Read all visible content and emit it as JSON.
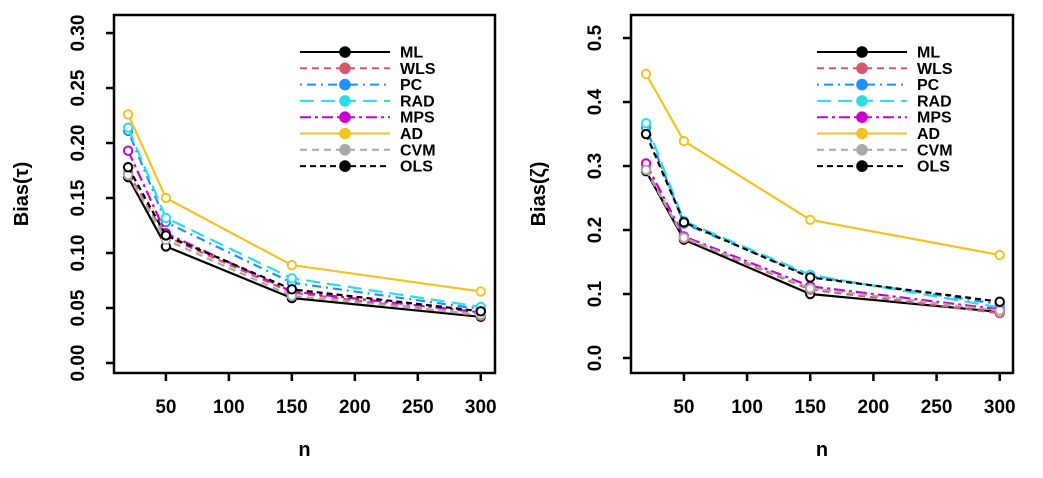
{
  "figure": {
    "background": "#ffffff",
    "text_color": "#000000"
  },
  "chart_data": [
    {
      "type": "line",
      "title": "",
      "xlabel": "n",
      "ylabel": "Bias(τ)",
      "x": [
        20,
        50,
        150,
        300
      ],
      "xlim": [
        8.8,
        311.3
      ],
      "ylim": [
        -0.0091,
        0.3164
      ],
      "xticks": [
        50,
        100,
        150,
        200,
        250,
        300
      ],
      "xtick_labels": [
        "50",
        "100",
        "150",
        "200",
        "250",
        "300"
      ],
      "yticks": [
        0.0,
        0.05,
        0.1,
        0.15,
        0.2,
        0.25,
        0.3
      ],
      "ytick_labels": [
        "0.00",
        "0.05",
        "0.10",
        "0.15",
        "0.20",
        "0.25",
        "0.30"
      ],
      "grid": false,
      "legend_position": "top-right-inside",
      "series": [
        {
          "name": "ML",
          "color": "#000000",
          "dash": "solid",
          "values": [
            0.169,
            0.106,
            0.059,
            0.042
          ]
        },
        {
          "name": "WLS",
          "color": "#D6566E",
          "dash": "dashed",
          "values": [
            0.173,
            0.115,
            0.064,
            0.043
          ]
        },
        {
          "name": "PC",
          "color": "#1E90FF",
          "dash": "dotdash",
          "values": [
            0.211,
            0.128,
            0.073,
            0.049
          ]
        },
        {
          "name": "RAD",
          "color": "#2BDDE8",
          "dash": "longdash",
          "values": [
            0.214,
            0.132,
            0.077,
            0.051
          ]
        },
        {
          "name": "MPS",
          "color": "#CC00CC",
          "dash": "dashdot",
          "values": [
            0.193,
            0.118,
            0.065,
            0.046
          ]
        },
        {
          "name": "AD",
          "color": "#F3C320",
          "dash": "solid",
          "values": [
            0.226,
            0.15,
            0.089,
            0.065
          ]
        },
        {
          "name": "CVM",
          "color": "#A9A9A9",
          "dash": "dashed",
          "values": [
            0.171,
            0.112,
            0.061,
            0.044
          ]
        },
        {
          "name": "OLS",
          "color": "#000000",
          "dash": "shortdash",
          "values": [
            0.178,
            0.116,
            0.067,
            0.047
          ]
        }
      ]
    },
    {
      "type": "line",
      "title": "",
      "xlabel": "n",
      "ylabel": "Bias(ζ)",
      "x": [
        20,
        50,
        150,
        300
      ],
      "xlim": [
        8.1,
        310.5
      ],
      "ylim": [
        -0.0234,
        0.536
      ],
      "xticks": [
        50,
        100,
        150,
        200,
        250,
        300
      ],
      "xtick_labels": [
        "50",
        "100",
        "150",
        "200",
        "250",
        "300"
      ],
      "yticks": [
        0.0,
        0.1,
        0.2,
        0.3,
        0.4,
        0.5
      ],
      "ytick_labels": [
        "0.0",
        "0.1",
        "0.2",
        "0.3",
        "0.4",
        "0.5"
      ],
      "grid": false,
      "legend_position": "top-right-inside",
      "series": [
        {
          "name": "ML",
          "color": "#000000",
          "dash": "solid",
          "values": [
            0.292,
            0.185,
            0.1,
            0.072
          ]
        },
        {
          "name": "WLS",
          "color": "#D6566E",
          "dash": "dashed",
          "values": [
            0.296,
            0.187,
            0.107,
            0.07
          ]
        },
        {
          "name": "PC",
          "color": "#1E90FF",
          "dash": "dotdash",
          "values": [
            0.36,
            0.21,
            0.128,
            0.084
          ]
        },
        {
          "name": "RAD",
          "color": "#2BDDE8",
          "dash": "longdash",
          "values": [
            0.367,
            0.214,
            0.13,
            0.079
          ]
        },
        {
          "name": "MPS",
          "color": "#CC00CC",
          "dash": "dashdot",
          "values": [
            0.304,
            0.19,
            0.112,
            0.076
          ]
        },
        {
          "name": "AD",
          "color": "#F3C320",
          "dash": "solid",
          "values": [
            0.444,
            0.339,
            0.216,
            0.161
          ]
        },
        {
          "name": "CVM",
          "color": "#A9A9A9",
          "dash": "dashed",
          "values": [
            0.294,
            0.188,
            0.109,
            0.074
          ]
        },
        {
          "name": "OLS",
          "color": "#000000",
          "dash": "shortdash",
          "values": [
            0.35,
            0.212,
            0.126,
            0.088
          ]
        }
      ]
    }
  ]
}
